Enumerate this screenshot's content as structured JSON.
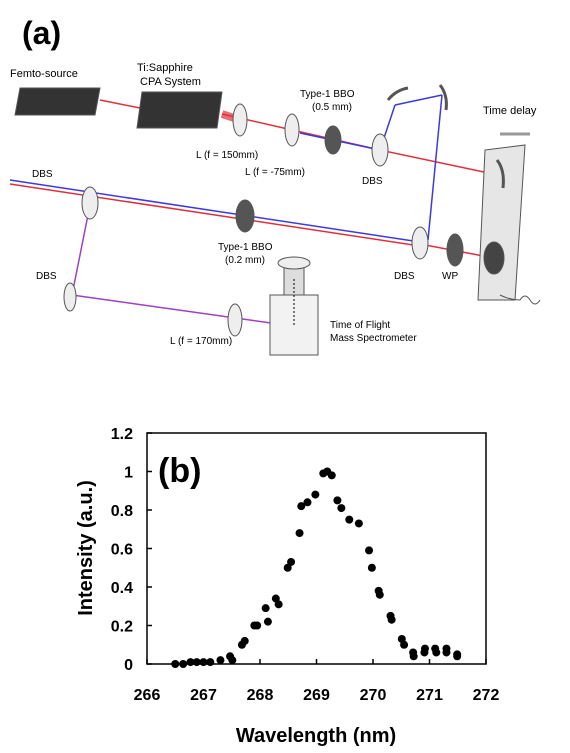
{
  "diagram": {
    "panel_label": "(a)",
    "labels": [
      "Femto-source",
      "Ti:Sapphire",
      "CPA System",
      "Type-1 BBO",
      "(0.5 mm)",
      "Time delay",
      "L (f = 150mm)",
      "L (f = -75mm)",
      "DBS",
      "DBS",
      "Type-1 BBO",
      "(0.2 mm)",
      "DBS",
      "DBS",
      "WP",
      "Time of Flight",
      "Mass Spectrometer",
      "L (f = 170mm)"
    ]
  },
  "chart_data": {
    "type": "scatter",
    "title": "(b)",
    "x_label": "Wavelength (nm)",
    "y_label": "Intensity (a.u.)",
    "color": "#000000",
    "x": [
      266.5,
      266.64,
      266.77,
      266.88,
      267.0,
      267.12,
      267.3,
      267.47,
      267.51,
      267.68,
      267.73,
      267.9,
      267.95,
      268.1,
      268.14,
      268.28,
      268.33,
      268.49,
      268.55,
      268.7,
      268.73,
      268.84,
      268.98,
      269.12,
      269.19,
      269.27,
      269.37,
      269.44,
      269.58,
      269.75,
      269.93,
      269.98,
      270.1,
      270.12,
      270.31,
      270.33,
      270.51,
      270.55,
      270.71,
      270.72,
      270.91,
      270.92,
      271.12,
      271.1,
      271.3,
      271.3,
      271.49,
      271.49
    ],
    "values": [
      0,
      0,
      0.01,
      0.01,
      0.01,
      0.01,
      0.02,
      0.04,
      0.02,
      0.1,
      0.12,
      0.2,
      0.2,
      0.29,
      0.22,
      0.34,
      0.31,
      0.5,
      0.53,
      0.68,
      0.82,
      0.84,
      0.88,
      0.99,
      1.0,
      0.98,
      0.85,
      0.81,
      0.75,
      0.73,
      0.59,
      0.5,
      0.38,
      0.36,
      0.25,
      0.23,
      0.13,
      0.1,
      0.06,
      0.04,
      0.06,
      0.08,
      0.06,
      0.08,
      0.06,
      0.08,
      0.04,
      0.05
    ],
    "xlim": [
      266,
      272
    ],
    "ylim": [
      0,
      1.2
    ],
    "xticks": [
      266,
      267,
      268,
      269,
      270,
      271,
      272
    ],
    "yticks": [
      0,
      0.2,
      0.4,
      0.6,
      0.8,
      1,
      1.2
    ],
    "grid": false
  }
}
